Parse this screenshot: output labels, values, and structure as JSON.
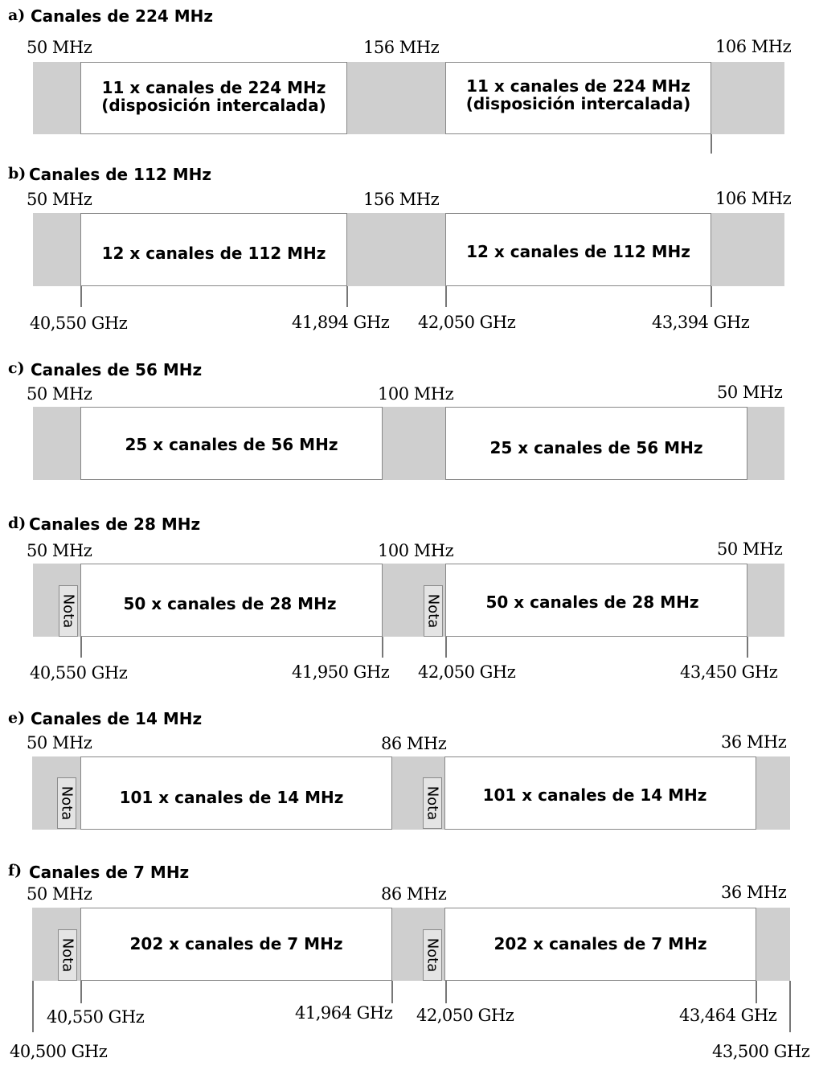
{
  "sections": [
    {
      "letter": "a)",
      "title": "Canales de 224 MHz",
      "gaps": [
        "50 MHz",
        "156 MHz",
        "106 MHz"
      ],
      "blocks": [
        "11 x canales de 224 MHz\n(disposición intercalada)",
        "11 x canales de 224 MHz\n(disposición intercalada)"
      ]
    },
    {
      "letter": "b)",
      "title": "Canales de 112 MHz",
      "gaps": [
        "50 MHz",
        "156 MHz",
        "106 MHz"
      ],
      "blocks": [
        "12 x canales de 112 MHz",
        "12 x canales de 112 MHz"
      ],
      "freqs": [
        "40,550 GHz",
        "41,894 GHz",
        "42,050 GHz",
        "43,394 GHz"
      ]
    },
    {
      "letter": "c)",
      "title": "Canales de 56 MHz",
      "gaps": [
        "50 MHz",
        "100 MHz",
        "50 MHz"
      ],
      "blocks": [
        "25 x canales de 56 MHz",
        "25 x canales de 56 MHz"
      ]
    },
    {
      "letter": "d)",
      "title": "Canales de 28 MHz",
      "gaps": [
        "50 MHz",
        "100 MHz",
        "50 MHz"
      ],
      "blocks": [
        "50 x canales de 28 MHz",
        "50 x canales de 28 MHz"
      ],
      "notes": [
        "Nota",
        "Nota"
      ],
      "freqs": [
        "40,550 GHz",
        "41,950 GHz",
        "42,050 GHz",
        "43,450 GHz"
      ]
    },
    {
      "letter": "e)",
      "title": "Canales de 14 MHz",
      "gaps": [
        "50 MHz",
        "86 MHz",
        "36 MHz"
      ],
      "blocks": [
        "101 x canales de 14 MHz",
        "101 x canales de 14 MHz"
      ],
      "notes": [
        "Nota",
        "Nota"
      ]
    },
    {
      "letter": "f)",
      "title": "Canales de 7 MHz",
      "gaps": [
        "50 MHz",
        "86 MHz",
        "36 MHz"
      ],
      "blocks": [
        "202 x canales de 7 MHz",
        "202 x canales de 7 MHz"
      ],
      "notes": [
        "Nota",
        "Nota"
      ],
      "freqs": [
        "40,550 GHz",
        "41,964 GHz",
        "42,050 GHz",
        "43,464 GHz"
      ]
    }
  ],
  "band_edges": [
    "40,500 GHz",
    "43,500 GHz"
  ]
}
